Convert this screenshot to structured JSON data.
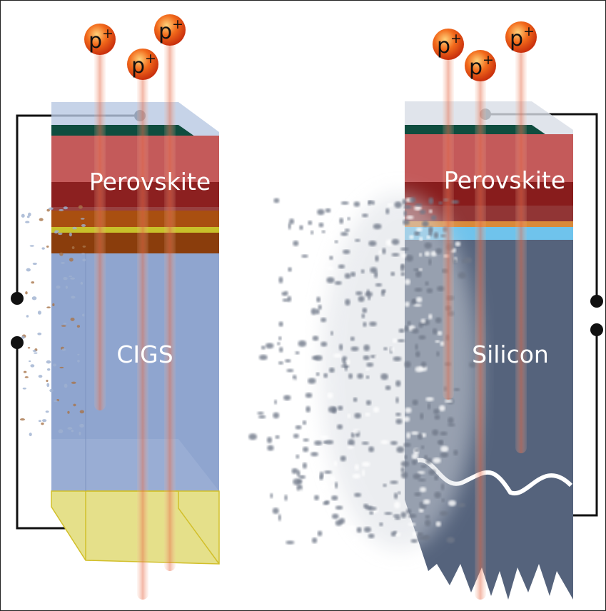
{
  "left_cell": {
    "top_layer": "Perovskite",
    "bottom_layer": "CIGS"
  },
  "right_cell": {
    "top_layer": "Perovskite",
    "bottom_layer": "Silicon"
  },
  "protons": [
    {
      "base": "p",
      "sup": "+"
    },
    {
      "base": "p",
      "sup": "+"
    },
    {
      "base": "p",
      "sup": "+"
    },
    {
      "base": "p",
      "sup": "+"
    },
    {
      "base": "p",
      "sup": "+"
    },
    {
      "base": "p",
      "sup": "+"
    }
  ]
}
